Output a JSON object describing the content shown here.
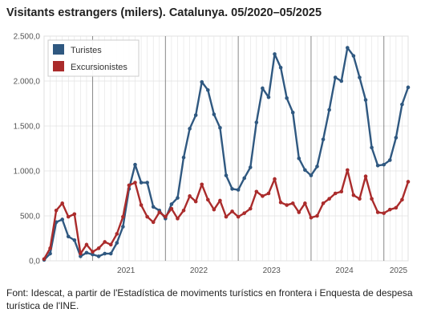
{
  "title": "Visitants estrangers (milers). Catalunya. 05/2020–05/2025",
  "source": "Font: Idescat, a partir de l'Estadística de moviments turístics en frontera i Enquesta de despesa turística de l'INE.",
  "colors": {
    "background": "#ffffff",
    "grid_major": "#888888",
    "grid_minor": "#e2e2e2",
    "frame": "#dddddd"
  },
  "chart_data": {
    "type": "line",
    "title": "Visitants estrangers (milers). Catalunya. 05/2020–05/2025",
    "xlabel": "",
    "ylabel": "",
    "x_start": "2020-05",
    "x_end": "2025-05",
    "x_tick_labels": [
      "2021",
      "2022",
      "2023",
      "2024",
      "2025"
    ],
    "y_tick_labels": [
      "0,0",
      "500,0",
      "1.000,0",
      "1.500,0",
      "2.000,0",
      "2.500,0"
    ],
    "ylim": [
      0,
      2500
    ],
    "grid": true,
    "legend": "top-left",
    "x": [
      "2020-05",
      "2020-06",
      "2020-07",
      "2020-08",
      "2020-09",
      "2020-10",
      "2020-11",
      "2020-12",
      "2021-01",
      "2021-02",
      "2021-03",
      "2021-04",
      "2021-05",
      "2021-06",
      "2021-07",
      "2021-08",
      "2021-09",
      "2021-10",
      "2021-11",
      "2021-12",
      "2022-01",
      "2022-02",
      "2022-03",
      "2022-04",
      "2022-05",
      "2022-06",
      "2022-07",
      "2022-08",
      "2022-09",
      "2022-10",
      "2022-11",
      "2022-12",
      "2023-01",
      "2023-02",
      "2023-03",
      "2023-04",
      "2023-05",
      "2023-06",
      "2023-07",
      "2023-08",
      "2023-09",
      "2023-10",
      "2023-11",
      "2023-12",
      "2024-01",
      "2024-02",
      "2024-03",
      "2024-04",
      "2024-05",
      "2024-06",
      "2024-07",
      "2024-08",
      "2024-09",
      "2024-10",
      "2024-11",
      "2024-12",
      "2025-01",
      "2025-02",
      "2025-03",
      "2025-04",
      "2025-05"
    ],
    "series": [
      {
        "name": "Turistes",
        "color": "#2f5880",
        "values": [
          10,
          80,
          430,
          460,
          270,
          230,
          50,
          90,
          70,
          50,
          80,
          80,
          200,
          380,
          800,
          1070,
          870,
          870,
          600,
          560,
          470,
          630,
          700,
          1150,
          1470,
          1620,
          1990,
          1900,
          1630,
          1480,
          950,
          800,
          790,
          920,
          1040,
          1540,
          1920,
          1820,
          2300,
          2150,
          1810,
          1650,
          1140,
          1010,
          950,
          1050,
          1350,
          1680,
          2040,
          2000,
          2370,
          2280,
          2040,
          1790,
          1260,
          1060,
          1070,
          1120,
          1370,
          1740,
          1930
        ]
      },
      {
        "name": "Excursionistes",
        "color": "#aa2b2b",
        "values": [
          20,
          140,
          560,
          640,
          490,
          520,
          80,
          180,
          100,
          140,
          210,
          180,
          300,
          490,
          840,
          870,
          620,
          490,
          430,
          540,
          490,
          580,
          470,
          560,
          720,
          660,
          850,
          680,
          570,
          670,
          490,
          550,
          490,
          530,
          580,
          770,
          720,
          750,
          910,
          650,
          620,
          640,
          540,
          640,
          480,
          500,
          640,
          690,
          750,
          770,
          1010,
          730,
          690,
          940,
          690,
          540,
          530,
          570,
          590,
          680,
          880
        ]
      }
    ]
  }
}
